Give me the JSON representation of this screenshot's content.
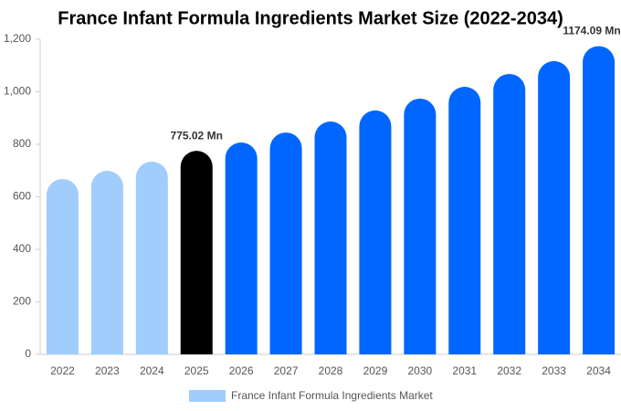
{
  "chart_data": {
    "type": "bar",
    "title": "France Infant Formula Ingredients Market Size (2022-2034)",
    "categories": [
      "2022",
      "2023",
      "2024",
      "2025",
      "2026",
      "2027",
      "2028",
      "2029",
      "2030",
      "2031",
      "2032",
      "2033",
      "2034"
    ],
    "series": [
      {
        "name": "France Infant Formula Ingredients Market",
        "color": "#a0cdfc",
        "colors": [
          "#a0cdfc",
          "#a0cdfc",
          "#a0cdfc",
          "#000000",
          "#0066ff",
          "#0066ff",
          "#0066ff",
          "#0066ff",
          "#0066ff",
          "#0066ff",
          "#0066ff",
          "#0066ff",
          "#0066ff"
        ],
        "values": [
          668,
          699,
          734,
          775.02,
          807,
          845,
          887,
          929,
          974,
          1019,
          1068,
          1117,
          1174.09
        ],
        "value_labels": [
          null,
          null,
          null,
          "775.02 Mn",
          null,
          null,
          null,
          null,
          null,
          null,
          null,
          null,
          "1174.09 Mn"
        ]
      }
    ],
    "ylim": [
      0,
      1200
    ],
    "yticks": [
      0,
      200,
      400,
      600,
      800,
      {
        "value": 1000,
        "label": "1,000"
      },
      {
        "value": 1200,
        "label": "1,200"
      }
    ],
    "grid": false
  }
}
